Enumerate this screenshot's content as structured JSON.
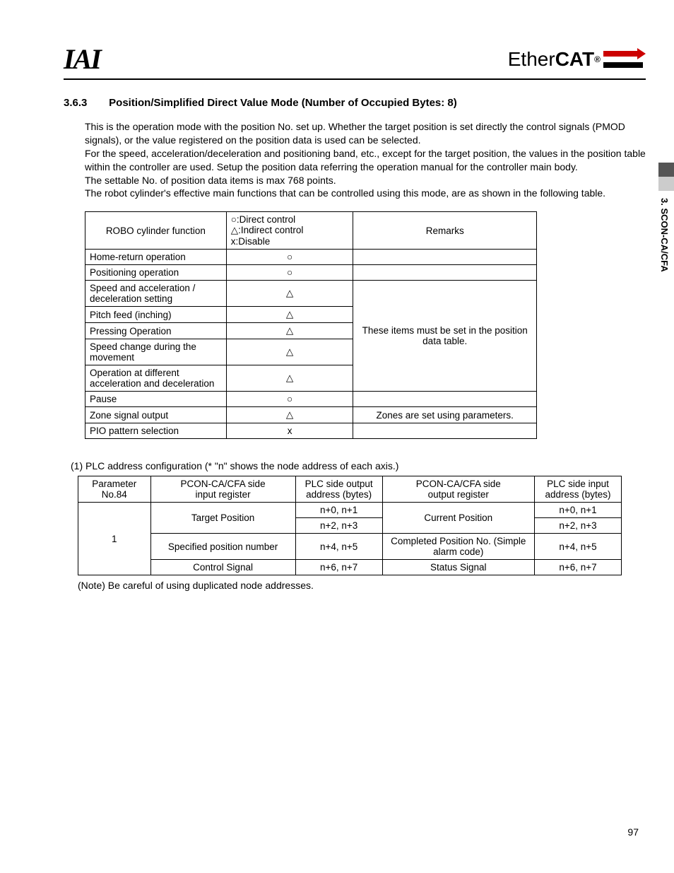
{
  "logos": {
    "iai": "IAI",
    "ether": "Ether",
    "cat": "CAT",
    "reg": "®"
  },
  "side_tab": "3. SCON-CA/CFA",
  "section": {
    "number": "3.6.3",
    "title": "Position/Simplified Direct Value Mode (Number of Occupied Bytes: 8)"
  },
  "paragraphs": [
    "This is the operation mode with the position No. set up. Whether the target position is set directly the control signals (PMOD signals), or the value registered on the position data is used can be selected.",
    "For the speed, acceleration/deceleration and positioning band, etc., except for the target position, the values in the position table within the controller are used. Setup the position data referring the operation manual for the controller main body.",
    "The settable No. of position data items is max 768 points.",
    "The robot cylinder's effective main functions that can be controlled using this mode, are as shown in the following table."
  ],
  "table1": {
    "headers": {
      "c1": "ROBO cylinder function",
      "c2_l1": "○:Direct control",
      "c2_l2": "△:Indirect control",
      "c2_l3": "x:Disable",
      "c3": "Remarks"
    },
    "rows": [
      {
        "fn": "Home-return operation",
        "ctl": "○",
        "rem": ""
      },
      {
        "fn": "Positioning operation",
        "ctl": "○",
        "rem": ""
      },
      {
        "fn": "Speed and acceleration / deceleration setting",
        "ctl": "△"
      },
      {
        "fn": "Pitch feed (inching)",
        "ctl": "△"
      },
      {
        "fn": "Pressing Operation",
        "ctl": "△"
      },
      {
        "fn": "Speed change during the movement",
        "ctl": "△"
      },
      {
        "fn": "Operation at different acceleration and deceleration",
        "ctl": "△"
      },
      {
        "fn": "Pause",
        "ctl": "○",
        "rem": ""
      },
      {
        "fn": "Zone signal output",
        "ctl": "△",
        "rem": "Zones are set using parameters."
      },
      {
        "fn": "PIO pattern selection",
        "ctl": "x",
        "rem": ""
      }
    ],
    "merged_remark": "These items must be set in the position data table."
  },
  "subheading": "(1)  PLC address configuration (* \"n\" shows the node address of each axis.)",
  "table2": {
    "headers": {
      "c1a": "Parameter",
      "c1b": "No.84",
      "c2a": "PCON-CA/CFA side",
      "c2b": "input register",
      "c3a": "PLC side output",
      "c3b": "address (bytes)",
      "c4a": "PCON-CA/CFA side",
      "c4b": "output register",
      "c5a": "PLC side input",
      "c5b": "address (bytes)"
    },
    "param": "1",
    "rows": [
      {
        "c2": "Target Position",
        "c3a": "n+0, n+1",
        "c3b": "n+2, n+3",
        "c4": "Current Position",
        "c5a": "n+0, n+1",
        "c5b": "n+2, n+3",
        "merged24": true
      },
      {
        "c2": "Specified position number",
        "c3": "n+4, n+5",
        "c4": "Completed Position No. (Simple alarm code)",
        "c5": "n+4, n+5"
      },
      {
        "c2": "Control Signal",
        "c3": "n+6, n+7",
        "c4": "Status Signal",
        "c5": "n+6, n+7"
      }
    ]
  },
  "note": "(Note) Be careful of using duplicated node addresses.",
  "page_number": "97"
}
